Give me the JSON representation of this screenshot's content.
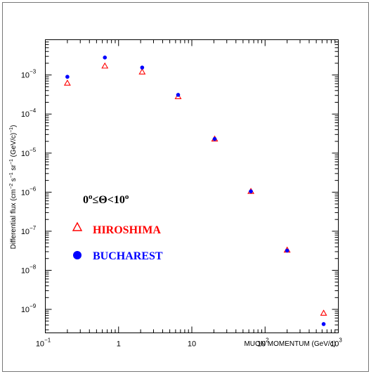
{
  "chart_data": {
    "type": "scatter",
    "xlabel": "MUON MOMENTUM (GeV/c)",
    "ylabel": "Differential flux (cm⁻² s⁻¹ sr⁻¹ (GeV/c)⁻¹)",
    "x_scale": "log",
    "y_scale": "log",
    "xlim": [
      0.1,
      1000
    ],
    "ylim": [
      2.5e-10,
      0.008
    ],
    "grid": false,
    "x_ticks": [
      {
        "value": 0.1,
        "base": "10",
        "exp": "−1"
      },
      {
        "value": 1,
        "base": "1",
        "exp": ""
      },
      {
        "value": 10,
        "base": "10",
        "exp": ""
      },
      {
        "value": 100,
        "base": "10",
        "exp": "2"
      },
      {
        "value": 1000,
        "base": "10",
        "exp": "3"
      }
    ],
    "y_ticks": [
      {
        "value": 0.001,
        "base": "10",
        "exp": "−3"
      },
      {
        "value": 0.0001,
        "base": "10",
        "exp": "−4"
      },
      {
        "value": 1e-05,
        "base": "10",
        "exp": "−5"
      },
      {
        "value": 1e-06,
        "base": "10",
        "exp": "−6"
      },
      {
        "value": 1e-07,
        "base": "10",
        "exp": "−7"
      },
      {
        "value": 1e-08,
        "base": "10",
        "exp": "−8"
      },
      {
        "value": 1e-09,
        "base": "10",
        "exp": "−9"
      }
    ],
    "annotation": {
      "text": "0°≤Θ<10°"
    },
    "legend_placement": "lower-left inside",
    "series": [
      {
        "name": "HIROSHIMA",
        "marker": "open-triangle",
        "color": "#ff0000",
        "points": [
          {
            "x": 0.2,
            "y": 0.00062
          },
          {
            "x": 0.65,
            "y": 0.0017
          },
          {
            "x": 2.1,
            "y": 0.0012
          },
          {
            "x": 6.5,
            "y": 0.00028
          },
          {
            "x": 20.5,
            "y": 2.3e-05
          },
          {
            "x": 64,
            "y": 1.05e-06
          },
          {
            "x": 200,
            "y": 3.3e-08
          },
          {
            "x": 630,
            "y": 8e-10
          }
        ]
      },
      {
        "name": "BUCHAREST",
        "marker": "filled-circle",
        "color": "#0000ff",
        "points": [
          {
            "x": 0.2,
            "y": 0.0009
          },
          {
            "x": 0.65,
            "y": 0.0028
          },
          {
            "x": 2.1,
            "y": 0.00155
          },
          {
            "x": 6.5,
            "y": 0.00031
          },
          {
            "x": 20.5,
            "y": 2.3e-05
          },
          {
            "x": 64,
            "y": 1.05e-06
          },
          {
            "x": 200,
            "y": 3.2e-08
          },
          {
            "x": 630,
            "y": 4.2e-10
          }
        ]
      }
    ]
  }
}
